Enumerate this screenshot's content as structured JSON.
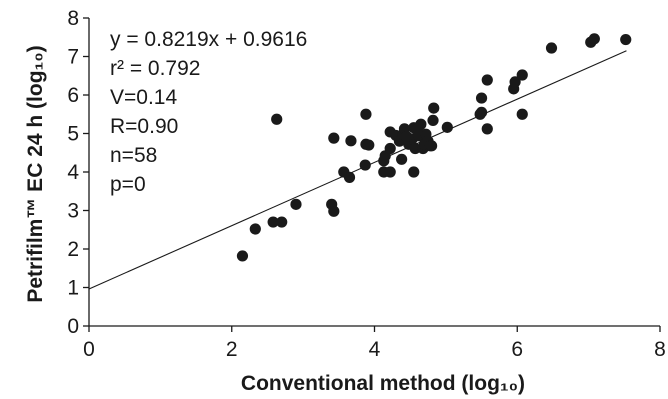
{
  "chart_data": {
    "type": "scatter",
    "title": "",
    "xlabel": "Conventional method (log₁₀)",
    "ylabel": "Petrifilm™ EC 24 h (log₁₀)",
    "xlim": [
      0,
      8
    ],
    "ylim": [
      0,
      8
    ],
    "x_ticks": [
      "0",
      "2",
      "4",
      "6",
      "8"
    ],
    "y_ticks": [
      "0",
      "1",
      "2",
      "3",
      "4",
      "5",
      "6",
      "7",
      "8"
    ],
    "grid": false,
    "legend": "none",
    "marker_color": "#1a1a1a",
    "annotations": [
      "y = 0.8219x + 0.9616",
      "r² = 0.792",
      "V=0.14",
      "R=0.90",
      "n=58",
      "p=0"
    ],
    "regression_line": {
      "slope": 0.8219,
      "intercept": 0.9616,
      "x_range": [
        0,
        7.53
      ]
    },
    "points": [
      [
        2.15,
        1.82
      ],
      [
        2.33,
        2.52
      ],
      [
        2.58,
        2.7
      ],
      [
        2.7,
        2.7
      ],
      [
        2.9,
        3.16
      ],
      [
        2.63,
        5.37
      ],
      [
        3.4,
        3.16
      ],
      [
        3.43,
        2.98
      ],
      [
        3.43,
        4.88
      ],
      [
        3.57,
        4.0
      ],
      [
        3.65,
        3.86
      ],
      [
        3.67,
        4.81
      ],
      [
        3.87,
        4.18
      ],
      [
        3.88,
        4.72
      ],
      [
        3.88,
        5.5
      ],
      [
        4.13,
        4.0
      ],
      [
        4.13,
        4.29
      ],
      [
        4.15,
        4.42
      ],
      [
        4.22,
        4.0
      ],
      [
        4.22,
        4.61
      ],
      [
        4.22,
        5.04
      ],
      [
        4.3,
        4.95
      ],
      [
        4.35,
        4.8
      ],
      [
        4.38,
        4.33
      ],
      [
        4.4,
        4.98
      ],
      [
        4.42,
        5.12
      ],
      [
        4.48,
        4.72
      ],
      [
        4.53,
        4.86
      ],
      [
        4.55,
        5.15
      ],
      [
        4.55,
        4.0
      ],
      [
        4.57,
        4.61
      ],
      [
        4.62,
        4.94
      ],
      [
        4.65,
        5.24
      ],
      [
        4.68,
        4.61
      ],
      [
        4.7,
        4.72
      ],
      [
        4.72,
        4.98
      ],
      [
        4.75,
        4.8
      ],
      [
        4.78,
        4.68
      ],
      [
        4.8,
        4.68
      ],
      [
        4.82,
        5.34
      ],
      [
        4.83,
        5.66
      ],
      [
        5.02,
        5.16
      ],
      [
        5.48,
        5.5
      ],
      [
        5.5,
        5.92
      ],
      [
        5.5,
        5.55
      ],
      [
        5.58,
        5.12
      ],
      [
        5.58,
        6.39
      ],
      [
        5.95,
        6.16
      ],
      [
        5.97,
        6.34
      ],
      [
        6.07,
        5.5
      ],
      [
        6.07,
        6.52
      ],
      [
        6.48,
        7.22
      ],
      [
        7.03,
        7.37
      ],
      [
        7.08,
        7.46
      ],
      [
        7.52,
        7.44
      ],
      [
        4.45,
        4.92
      ],
      [
        4.6,
        5.1
      ],
      [
        3.92,
        4.7
      ]
    ]
  }
}
